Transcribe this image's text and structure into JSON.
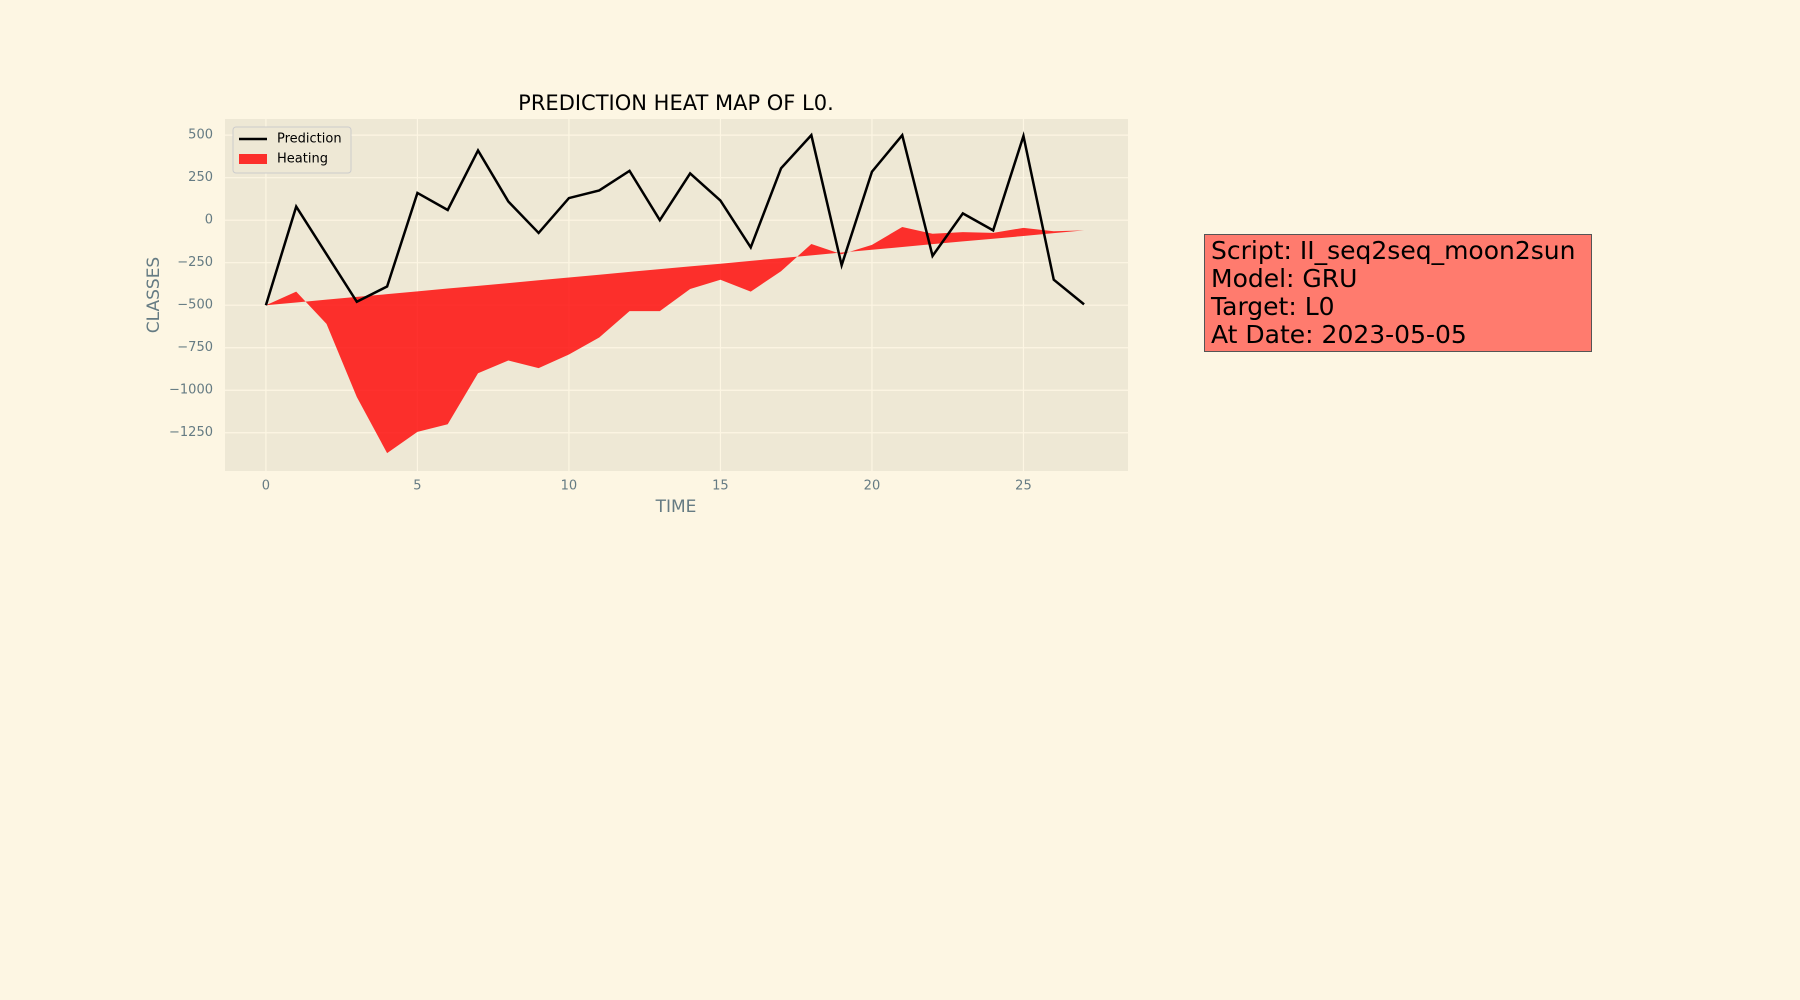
{
  "chart_data": {
    "type": "line",
    "title": "PREDICTION HEAT MAP OF L0.",
    "x_label": "TIME",
    "y_label": "CLASSES",
    "x": [
      0,
      1,
      2,
      3,
      4,
      5,
      6,
      7,
      8,
      9,
      10,
      11,
      12,
      13,
      14,
      15,
      16,
      17,
      18,
      19,
      20,
      21,
      22,
      23,
      24,
      25,
      26,
      27
    ],
    "series": [
      {
        "name": "Prediction",
        "color": "#000000",
        "kind": "line",
        "values": [
          -500,
          80,
          -200,
          -480,
          -390,
          160,
          60,
          410,
          110,
          -75,
          130,
          175,
          290,
          0,
          275,
          115,
          -160,
          305,
          500,
          -265,
          285,
          500,
          -210,
          40,
          -60,
          495,
          -350,
          -495
        ]
      },
      {
        "name": "Heating",
        "color": "#ff0000",
        "kind": "fill_between",
        "values": [
          -500,
          -420,
          -610,
          -1040,
          -1370,
          -1245,
          -1200,
          -900,
          -825,
          -870,
          -790,
          -690,
          -535,
          -535,
          -405,
          -350,
          -420,
          -300,
          -140,
          -200,
          -145,
          -40,
          -80,
          -70,
          -75,
          -45,
          -65,
          -60
        ],
        "baseline": [
          -500,
          -484,
          -467,
          -451,
          -435,
          -419,
          -402,
          -386,
          -370,
          -353,
          -337,
          -321,
          -304,
          -288,
          -272,
          -256,
          -239,
          -223,
          -207,
          -190,
          -174,
          -158,
          -141,
          -125,
          -109,
          -93,
          -76,
          -60
        ]
      }
    ],
    "xlim": [
      -1.35,
      28.45
    ],
    "ylim": [
      -1475,
      595
    ],
    "xticks": [
      0,
      5,
      10,
      15,
      20,
      25
    ],
    "yticks": [
      {
        "value": -1250,
        "label": "−1250"
      },
      {
        "value": -1000,
        "label": "−1000"
      },
      {
        "value": -750,
        "label": "−750"
      },
      {
        "value": -500,
        "label": "−500"
      },
      {
        "value": -250,
        "label": "−250"
      },
      0,
      250,
      500
    ],
    "grid": true,
    "legend": "upper left",
    "info_box": {
      "lines": [
        "Script: II_seq2seq_moon2sun",
        "Model: GRU",
        "Target: L0",
        "At Date: 2023-05-05"
      ],
      "color": "#ff7b6e"
    }
  }
}
